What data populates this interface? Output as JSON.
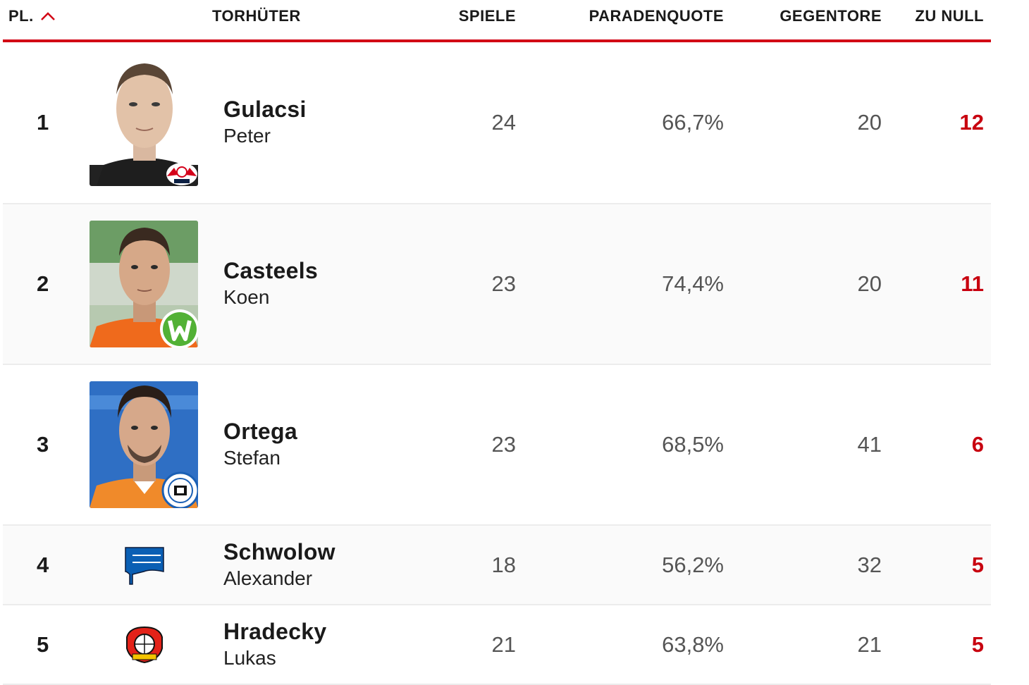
{
  "header": {
    "rank": "PL.",
    "keeper": "TORHÜTER",
    "games": "SPIELE",
    "save_rate": "PARADENQUOTE",
    "goals_against": "GEGENTORE",
    "clean_sheets": "ZU NULL"
  },
  "colors": {
    "accent": "#d20515",
    "clean_sheets": "#c8000f"
  },
  "rows": [
    {
      "rank": "1",
      "last": "Gulacsi",
      "first": "Peter",
      "games": "24",
      "save_rate": "66,7%",
      "goals_against": "20",
      "clean_sheets": "12",
      "club_icon": "rb-leipzig-logo"
    },
    {
      "rank": "2",
      "last": "Casteels",
      "first": "Koen",
      "games": "23",
      "save_rate": "74,4%",
      "goals_against": "20",
      "clean_sheets": "11",
      "club_icon": "wolfsburg-logo"
    },
    {
      "rank": "3",
      "last": "Ortega",
      "first": "Stefan",
      "games": "23",
      "save_rate": "68,5%",
      "goals_against": "41",
      "clean_sheets": "6",
      "club_icon": "arminia-bielefeld-logo"
    },
    {
      "rank": "4",
      "last": "Schwolow",
      "first": "Alexander",
      "games": "18",
      "save_rate": "56,2%",
      "goals_against": "32",
      "clean_sheets": "5",
      "club_icon": "hertha-bsc-logo"
    },
    {
      "rank": "5",
      "last": "Hradecky",
      "first": "Lukas",
      "games": "21",
      "save_rate": "63,8%",
      "goals_against": "21",
      "clean_sheets": "5",
      "club_icon": "bayer-leverkusen-logo"
    }
  ]
}
